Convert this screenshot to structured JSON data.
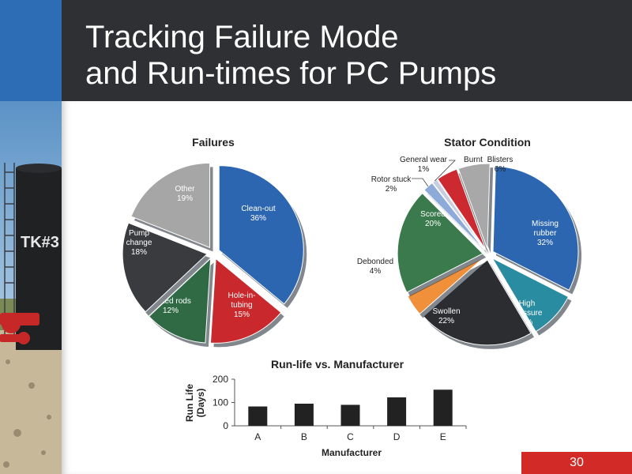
{
  "slide": {
    "title_line1": "Tracking Failure Mode",
    "title_line2": "and Run-times for PC Pumps",
    "page_number": "30",
    "tank_label": "TK#3"
  },
  "colors": {
    "header": "#2f3033",
    "accent_blue": "#2d6db5",
    "page_red": "#d22b27"
  },
  "chart_data": [
    {
      "type": "pie",
      "title": "Failures",
      "slices": [
        {
          "label": "Clean-out",
          "value": 36,
          "pct": "36%",
          "color": "#2d66b0"
        },
        {
          "label": "Hole-in-tubing",
          "value": 15,
          "pct": "15%",
          "color": "#c9282c"
        },
        {
          "label": "Parted rods",
          "value": 12,
          "pct": "12%",
          "color": "#2f6a45"
        },
        {
          "label": "Pump change",
          "value": 18,
          "pct": "18%",
          "color": "#3a3b3f"
        },
        {
          "label": "Other",
          "value": 19,
          "pct": "19%",
          "color": "#a6a6a6"
        }
      ]
    },
    {
      "type": "pie",
      "title": "Stator Condition",
      "slices": [
        {
          "label": "Missing rubber",
          "value": 32,
          "pct": "32%",
          "color": "#2d66b0"
        },
        {
          "label": "High pressure",
          "value": 9,
          "pct": "9%",
          "color": "#2a8ca0"
        },
        {
          "label": "Swollen",
          "value": 22,
          "pct": "22%",
          "color": "#2c2d31"
        },
        {
          "label": "Debonded",
          "value": 4,
          "pct": "4%",
          "color": "#f0903a"
        },
        {
          "label": "Scored",
          "value": 20,
          "pct": "20%",
          "color": "#3a7a4c"
        },
        {
          "label": "Rotor stuck",
          "value": 2,
          "pct": "2%",
          "color": "#8eaad8"
        },
        {
          "label": "General wear",
          "value": 1,
          "pct": "1%",
          "color": "#c9cde0"
        },
        {
          "label": "Burnt",
          "value": 4,
          "pct": "4%",
          "color": "#cc2a30"
        },
        {
          "label": "Blisters",
          "value": 6,
          "pct": "6%",
          "color": "#a8a8a8"
        }
      ]
    },
    {
      "type": "bar",
      "title": "Run-life vs. Manufacturer",
      "xlabel": "Manufacturer",
      "ylabel": "Run Life (Days)",
      "ylabel_line1": "Run Life",
      "ylabel_line2": "(Days)",
      "categories": [
        "A",
        "B",
        "C",
        "D",
        "E"
      ],
      "values": [
        83,
        95,
        90,
        122,
        155
      ],
      "ylim": [
        0,
        200
      ],
      "yticks": [
        0,
        100,
        200
      ],
      "color": "#222222"
    }
  ]
}
